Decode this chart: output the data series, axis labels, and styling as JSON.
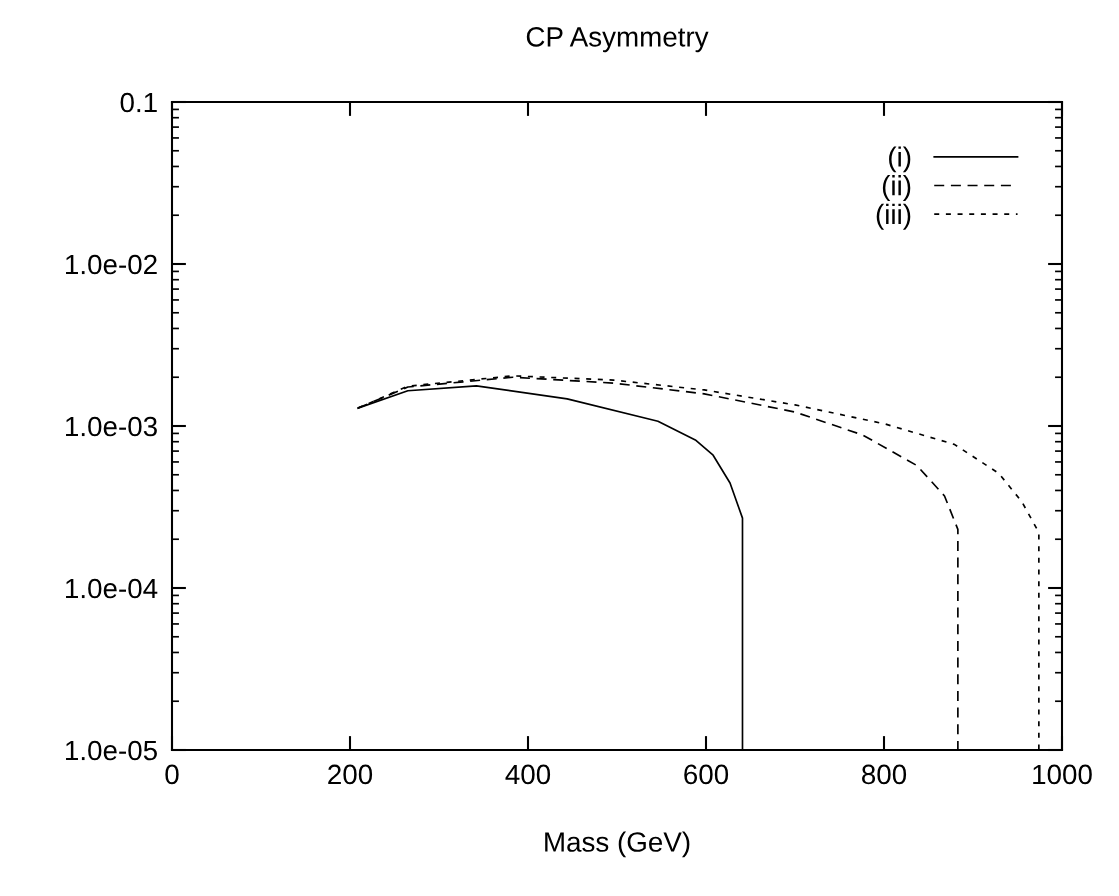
{
  "chart_data": {
    "type": "line",
    "title": "CP Asymmetry",
    "xlabel": "Mass (GeV)",
    "xlim": [
      0,
      1000
    ],
    "xticks": [
      0,
      200,
      400,
      600,
      800,
      1000
    ],
    "ylim": [
      1e-05,
      0.1
    ],
    "yticks": [
      {
        "value": 1e-05,
        "label": "1.0e-05"
      },
      {
        "value": 0.0001,
        "label": "1.0e-04"
      },
      {
        "value": 0.001,
        "label": "1.0e-03"
      },
      {
        "value": 0.01,
        "label": "1.0e-02"
      },
      {
        "value": 0.1,
        "label": "0.1"
      }
    ],
    "log": "y",
    "grid": false,
    "legend": "top right",
    "series": [
      {
        "name": "(i)",
        "color": "#000000",
        "line_style": "solid",
        "x": [
          209,
          265,
          342,
          444,
          546,
          588,
          608,
          627,
          641,
          641
        ],
        "values": [
          0.00129,
          0.00165,
          0.00177,
          0.00147,
          0.00107,
          0.00082,
          0.00066,
          0.000445,
          0.00027,
          1e-05
        ]
      },
      {
        "name": "(ii)",
        "color": "#000000",
        "line_style": "dashed",
        "x": [
          209,
          265,
          383,
          496,
          598,
          700,
          776,
          837,
          868,
          883,
          883
        ],
        "values": [
          0.00129,
          0.00174,
          0.002,
          0.00184,
          0.00158,
          0.00122,
          0.00088,
          0.00057,
          0.00037,
          0.00023,
          1e-05
        ]
      },
      {
        "name": "(iii)",
        "color": "#000000",
        "line_style": "dotted",
        "x": [
          209,
          265,
          383,
          496,
          598,
          700,
          801,
          879,
          929,
          955,
          974,
          974
        ],
        "values": [
          0.00129,
          0.00176,
          0.00204,
          0.00192,
          0.00167,
          0.00135,
          0.00103,
          0.00077,
          0.00051,
          0.00034,
          0.00022,
          1e-05
        ]
      }
    ]
  }
}
